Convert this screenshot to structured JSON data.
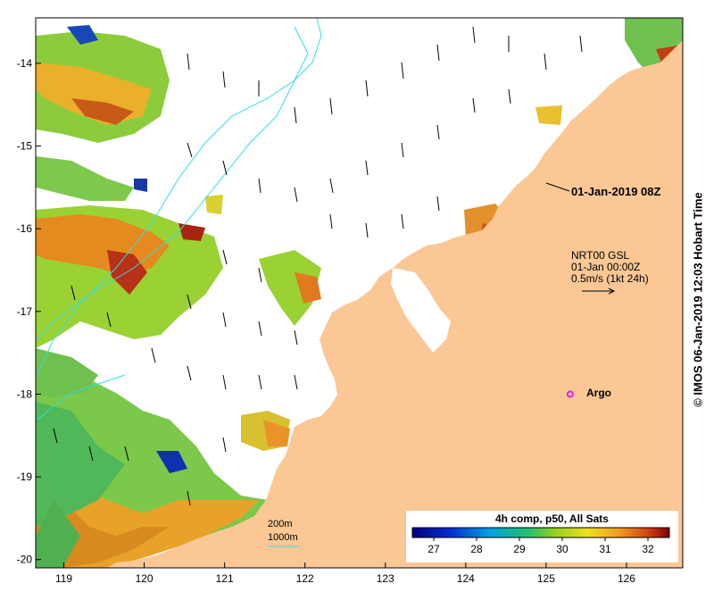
{
  "map": {
    "date_label": "01-Jan-2019 08Z",
    "current_source": {
      "line1": "NRT00 GSL",
      "line2": "01-Jan 00:00Z",
      "line3": "0.5m/s (1kt 24h)"
    },
    "argo_label": "Argo",
    "contours": {
      "c200": "200m",
      "c1000": "1000m"
    },
    "colorbar": {
      "title": "4h comp, p50, All Sats",
      "ticks": [
        "27",
        "28",
        "29",
        "30",
        "31",
        "32"
      ]
    },
    "copyright": "© IMOS 06-Jan-2019 12:03 Hobart Time",
    "colors": {
      "land": "#fbc795",
      "contour": "#33dddd",
      "argo": "#e020e0"
    }
  },
  "chart_data": {
    "type": "heatmap",
    "variable": "sea surface temperature",
    "x_ticks": [
      "119",
      "120",
      "121",
      "122",
      "123",
      "124",
      "125",
      "126"
    ],
    "y_ticks": [
      "-14",
      "-15",
      "-16",
      "-17",
      "-18",
      "-19",
      "-20"
    ],
    "xlim": [
      118.65,
      126.7
    ],
    "ylim": [
      -20.1,
      -13.45
    ],
    "colorbar_range": [
      26.5,
      32.5
    ],
    "argo_float": {
      "lon": 125.3,
      "lat": -18.0
    }
  }
}
